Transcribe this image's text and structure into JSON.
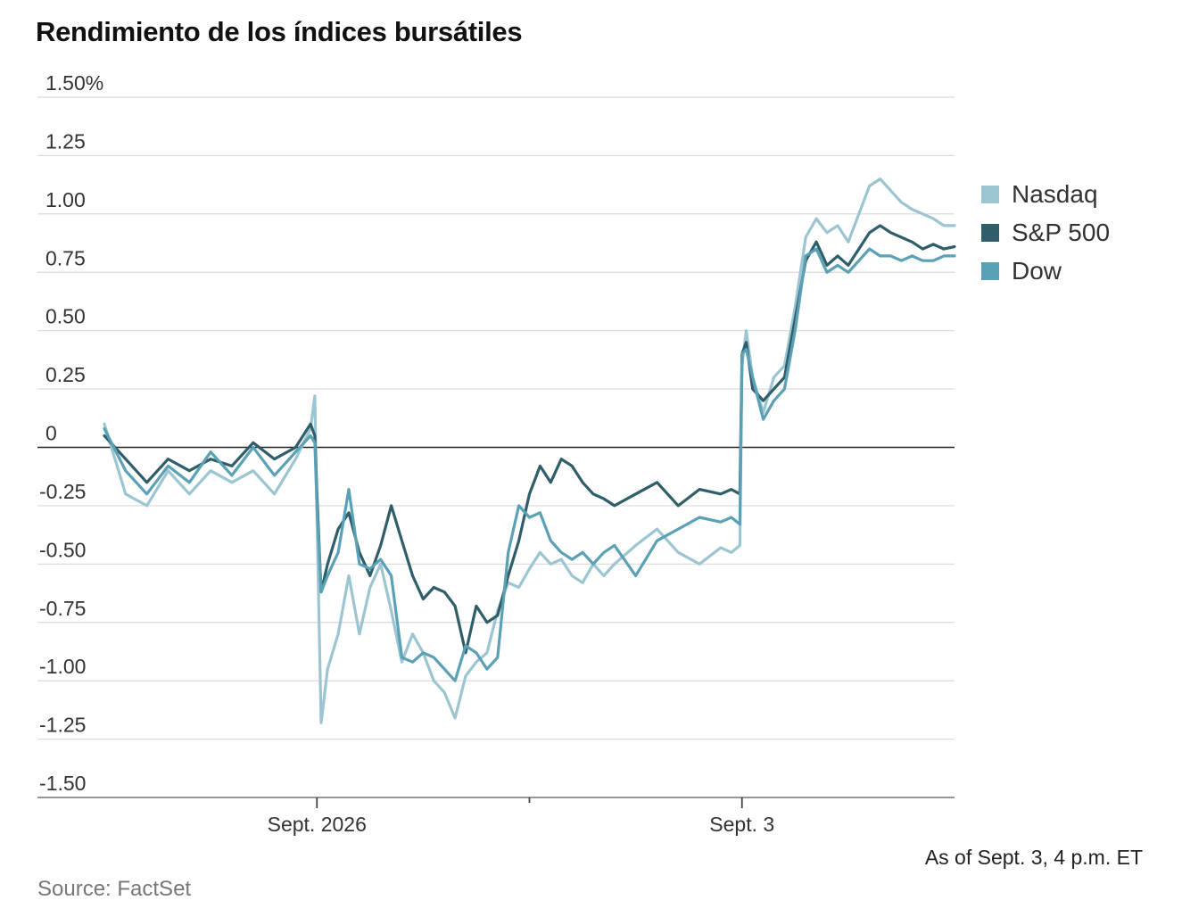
{
  "chart_data": {
    "type": "line",
    "title": "Rendimiento de los índices bursátiles",
    "ylim": [
      -1.5,
      1.5
    ],
    "y_ticks": [
      "1.50%",
      "1.25",
      "1.00",
      "0.75",
      "0.50",
      "0.25",
      "0",
      "-0.25",
      "-0.50",
      "-0.75",
      "-1.00",
      "-1.25",
      "-1.50"
    ],
    "y_tick_values": [
      1.5,
      1.25,
      1.0,
      0.75,
      0.5,
      0.25,
      0,
      -0.25,
      -0.5,
      -0.75,
      -1.0,
      -1.25,
      -1.5
    ],
    "x_ticks": [
      "Sept. 2026",
      "",
      "Sept. 3"
    ],
    "x_range": [
      -1,
      3
    ],
    "x_tick_values": [
      0,
      1,
      2
    ],
    "grid": true,
    "legend_position": "right",
    "series": [
      {
        "name": "Nasdaq",
        "color": "#9cc5d2",
        "x": [
          -1.0,
          -0.9,
          -0.8,
          -0.7,
          -0.6,
          -0.5,
          -0.4,
          -0.3,
          -0.2,
          -0.1,
          -0.03,
          -0.01,
          0.0,
          0.02,
          0.05,
          0.1,
          0.15,
          0.2,
          0.25,
          0.3,
          0.35,
          0.4,
          0.45,
          0.5,
          0.55,
          0.6,
          0.65,
          0.7,
          0.75,
          0.8,
          0.85,
          0.9,
          0.95,
          1.0,
          1.05,
          1.1,
          1.15,
          1.2,
          1.25,
          1.3,
          1.35,
          1.4,
          1.5,
          1.6,
          1.7,
          1.8,
          1.9,
          1.95,
          1.99,
          2.0,
          2.02,
          2.05,
          2.1,
          2.15,
          2.2,
          2.25,
          2.3,
          2.35,
          2.4,
          2.45,
          2.5,
          2.55,
          2.6,
          2.65,
          2.7,
          2.75,
          2.8,
          2.85,
          2.9,
          2.95,
          3.0
        ],
        "values": [
          0.1,
          -0.2,
          -0.25,
          -0.1,
          -0.2,
          -0.1,
          -0.15,
          -0.1,
          -0.2,
          -0.05,
          0.08,
          0.22,
          -0.3,
          -1.18,
          -0.95,
          -0.8,
          -0.55,
          -0.8,
          -0.6,
          -0.5,
          -0.7,
          -0.92,
          -0.8,
          -0.88,
          -1.0,
          -1.05,
          -1.16,
          -0.98,
          -0.92,
          -0.88,
          -0.7,
          -0.58,
          -0.6,
          -0.52,
          -0.45,
          -0.5,
          -0.48,
          -0.55,
          -0.58,
          -0.5,
          -0.55,
          -0.5,
          -0.42,
          -0.35,
          -0.45,
          -0.5,
          -0.43,
          -0.45,
          -0.42,
          0.35,
          0.5,
          0.3,
          0.15,
          0.3,
          0.35,
          0.6,
          0.9,
          0.98,
          0.92,
          0.95,
          0.88,
          1.0,
          1.12,
          1.15,
          1.1,
          1.05,
          1.02,
          1.0,
          0.98,
          0.95,
          0.95
        ]
      },
      {
        "name": "S&P 500",
        "color": "#2f5e6a",
        "x": [
          -1.0,
          -0.9,
          -0.8,
          -0.7,
          -0.6,
          -0.5,
          -0.4,
          -0.3,
          -0.2,
          -0.1,
          -0.03,
          -0.01,
          0.0,
          0.02,
          0.05,
          0.1,
          0.15,
          0.2,
          0.25,
          0.3,
          0.35,
          0.4,
          0.45,
          0.5,
          0.55,
          0.6,
          0.65,
          0.7,
          0.75,
          0.8,
          0.85,
          0.9,
          0.95,
          1.0,
          1.05,
          1.1,
          1.15,
          1.2,
          1.25,
          1.3,
          1.35,
          1.4,
          1.5,
          1.6,
          1.7,
          1.8,
          1.9,
          1.95,
          1.99,
          2.0,
          2.02,
          2.05,
          2.1,
          2.15,
          2.2,
          2.25,
          2.3,
          2.35,
          2.4,
          2.45,
          2.5,
          2.55,
          2.6,
          2.65,
          2.7,
          2.75,
          2.8,
          2.85,
          2.9,
          2.95,
          3.0
        ],
        "values": [
          0.05,
          -0.05,
          -0.15,
          -0.05,
          -0.1,
          -0.05,
          -0.08,
          0.02,
          -0.05,
          0.0,
          0.1,
          0.05,
          -0.2,
          -0.62,
          -0.5,
          -0.35,
          -0.28,
          -0.45,
          -0.55,
          -0.42,
          -0.25,
          -0.4,
          -0.55,
          -0.65,
          -0.6,
          -0.62,
          -0.68,
          -0.88,
          -0.68,
          -0.75,
          -0.72,
          -0.55,
          -0.4,
          -0.2,
          -0.08,
          -0.15,
          -0.05,
          -0.08,
          -0.15,
          -0.2,
          -0.22,
          -0.25,
          -0.2,
          -0.15,
          -0.25,
          -0.18,
          -0.2,
          -0.18,
          -0.2,
          0.4,
          0.45,
          0.25,
          0.2,
          0.25,
          0.3,
          0.55,
          0.8,
          0.88,
          0.78,
          0.82,
          0.78,
          0.85,
          0.92,
          0.95,
          0.92,
          0.9,
          0.88,
          0.85,
          0.87,
          0.85,
          0.86
        ]
      },
      {
        "name": "Dow",
        "color": "#5ba1b5",
        "x": [
          -1.0,
          -0.9,
          -0.8,
          -0.7,
          -0.6,
          -0.5,
          -0.4,
          -0.3,
          -0.2,
          -0.1,
          -0.03,
          -0.01,
          0.0,
          0.02,
          0.05,
          0.1,
          0.15,
          0.2,
          0.25,
          0.3,
          0.35,
          0.4,
          0.45,
          0.5,
          0.55,
          0.6,
          0.65,
          0.7,
          0.75,
          0.8,
          0.85,
          0.9,
          0.95,
          1.0,
          1.05,
          1.1,
          1.15,
          1.2,
          1.25,
          1.3,
          1.35,
          1.4,
          1.5,
          1.6,
          1.7,
          1.8,
          1.9,
          1.95,
          1.99,
          2.0,
          2.02,
          2.05,
          2.1,
          2.15,
          2.2,
          2.25,
          2.3,
          2.35,
          2.4,
          2.45,
          2.5,
          2.55,
          2.6,
          2.65,
          2.7,
          2.75,
          2.8,
          2.85,
          2.9,
          2.95,
          3.0
        ],
        "values": [
          0.08,
          -0.1,
          -0.2,
          -0.08,
          -0.15,
          -0.02,
          -0.12,
          0.0,
          -0.12,
          -0.02,
          0.05,
          0.02,
          -0.25,
          -0.62,
          -0.55,
          -0.45,
          -0.18,
          -0.5,
          -0.52,
          -0.48,
          -0.55,
          -0.9,
          -0.92,
          -0.88,
          -0.9,
          -0.95,
          -1.0,
          -0.85,
          -0.88,
          -0.95,
          -0.9,
          -0.45,
          -0.25,
          -0.3,
          -0.28,
          -0.4,
          -0.45,
          -0.48,
          -0.45,
          -0.5,
          -0.45,
          -0.42,
          -0.55,
          -0.4,
          -0.35,
          -0.3,
          -0.32,
          -0.3,
          -0.33,
          0.4,
          0.42,
          0.3,
          0.12,
          0.2,
          0.25,
          0.5,
          0.82,
          0.85,
          0.75,
          0.78,
          0.75,
          0.8,
          0.85,
          0.82,
          0.82,
          0.8,
          0.82,
          0.8,
          0.8,
          0.82,
          0.82
        ]
      }
    ]
  },
  "note": "As of Sept. 3, 4 p.m. ET",
  "source": "Source: FactSet"
}
